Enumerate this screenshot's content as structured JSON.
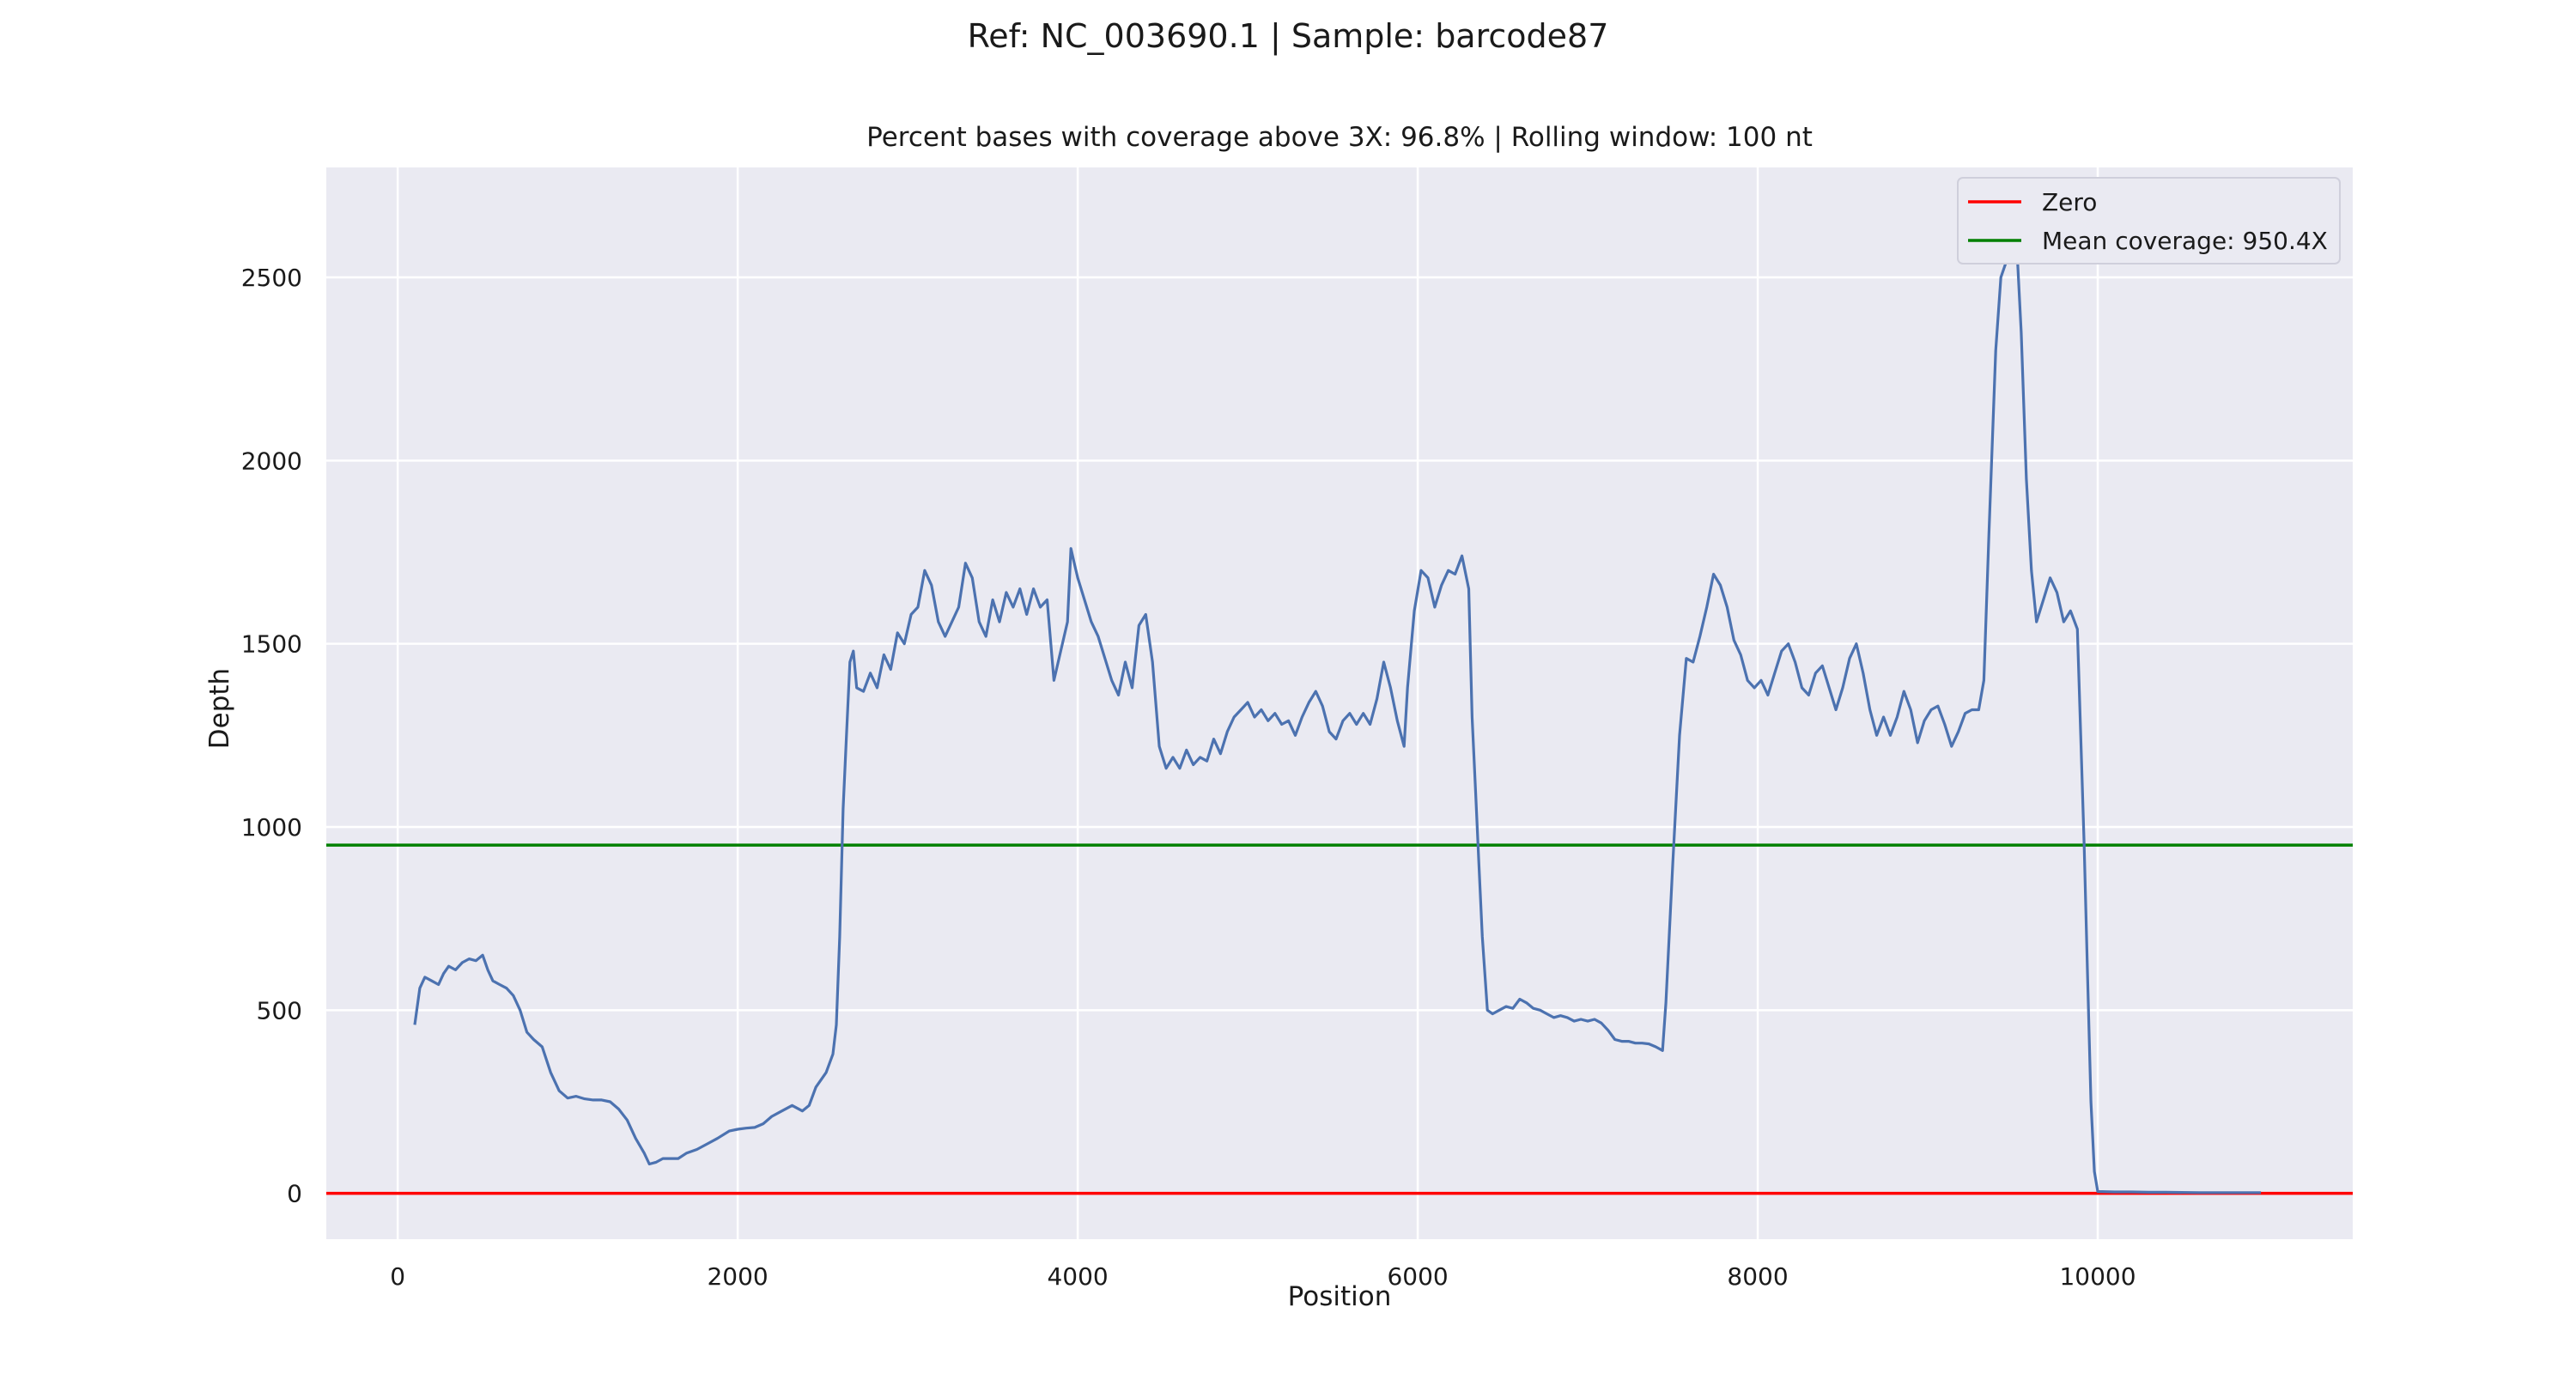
{
  "figure": {
    "suptitle": "Ref: NC_003690.1 | Sample: barcode87",
    "axes_title": "Percent bases with coverage above 3X:  96.8% | Rolling window: 100 nt"
  },
  "colors": {
    "plot_bg": "#eaeaf2",
    "grid": "#ffffff",
    "depth_line": "#4c72b0",
    "zero_line": "#ff0000",
    "mean_line": "#008000"
  },
  "chart_data": {
    "type": "line",
    "title": "Percent bases with coverage above 3X:  96.8% | Rolling window: 100 nt",
    "xlabel": "Position",
    "ylabel": "Depth",
    "xlim": [
      -420,
      11500
    ],
    "ylim": [
      -125,
      2800
    ],
    "xticks": [
      0,
      2000,
      4000,
      6000,
      8000,
      10000
    ],
    "yticks": [
      0,
      500,
      1000,
      1500,
      2000,
      2500
    ],
    "grid": true,
    "legend_position": "top-right",
    "legend": [
      {
        "label": "Zero",
        "color": "#ff0000"
      },
      {
        "label": "Mean coverage:  950.4X",
        "color": "#008000"
      }
    ],
    "reference_lines": [
      {
        "name": "Zero",
        "y": 0,
        "color": "#ff0000"
      },
      {
        "name": "Mean coverage:  950.4X",
        "y": 950.4,
        "color": "#008000"
      }
    ],
    "series": [
      {
        "color": "#4c72b0",
        "points": [
          [
            100,
            460
          ],
          [
            130,
            560
          ],
          [
            160,
            590
          ],
          [
            200,
            580
          ],
          [
            240,
            570
          ],
          [
            270,
            600
          ],
          [
            300,
            620
          ],
          [
            340,
            610
          ],
          [
            380,
            630
          ],
          [
            420,
            640
          ],
          [
            460,
            635
          ],
          [
            500,
            650
          ],
          [
            530,
            610
          ],
          [
            560,
            580
          ],
          [
            600,
            570
          ],
          [
            640,
            560
          ],
          [
            680,
            540
          ],
          [
            720,
            500
          ],
          [
            760,
            440
          ],
          [
            800,
            420
          ],
          [
            850,
            400
          ],
          [
            900,
            330
          ],
          [
            950,
            280
          ],
          [
            1000,
            260
          ],
          [
            1050,
            265
          ],
          [
            1100,
            258
          ],
          [
            1150,
            255
          ],
          [
            1200,
            255
          ],
          [
            1250,
            250
          ],
          [
            1300,
            230
          ],
          [
            1350,
            200
          ],
          [
            1400,
            150
          ],
          [
            1450,
            110
          ],
          [
            1480,
            80
          ],
          [
            1520,
            85
          ],
          [
            1560,
            95
          ],
          [
            1600,
            95
          ],
          [
            1650,
            95
          ],
          [
            1700,
            110
          ],
          [
            1760,
            120
          ],
          [
            1820,
            135
          ],
          [
            1880,
            150
          ],
          [
            1950,
            170
          ],
          [
            2000,
            175
          ],
          [
            2050,
            178
          ],
          [
            2100,
            180
          ],
          [
            2150,
            190
          ],
          [
            2200,
            210
          ],
          [
            2260,
            225
          ],
          [
            2320,
            240
          ],
          [
            2380,
            225
          ],
          [
            2420,
            240
          ],
          [
            2460,
            290
          ],
          [
            2520,
            330
          ],
          [
            2560,
            380
          ],
          [
            2580,
            460
          ],
          [
            2600,
            700
          ],
          [
            2620,
            1050
          ],
          [
            2640,
            1250
          ],
          [
            2660,
            1450
          ],
          [
            2680,
            1480
          ],
          [
            2700,
            1380
          ],
          [
            2740,
            1370
          ],
          [
            2780,
            1420
          ],
          [
            2820,
            1380
          ],
          [
            2860,
            1470
          ],
          [
            2900,
            1430
          ],
          [
            2940,
            1530
          ],
          [
            2980,
            1500
          ],
          [
            3020,
            1580
          ],
          [
            3060,
            1600
          ],
          [
            3100,
            1700
          ],
          [
            3140,
            1660
          ],
          [
            3180,
            1560
          ],
          [
            3220,
            1520
          ],
          [
            3260,
            1560
          ],
          [
            3300,
            1600
          ],
          [
            3340,
            1720
          ],
          [
            3380,
            1680
          ],
          [
            3420,
            1560
          ],
          [
            3460,
            1520
          ],
          [
            3500,
            1620
          ],
          [
            3540,
            1560
          ],
          [
            3580,
            1640
          ],
          [
            3620,
            1600
          ],
          [
            3660,
            1650
          ],
          [
            3700,
            1580
          ],
          [
            3740,
            1650
          ],
          [
            3780,
            1600
          ],
          [
            3820,
            1620
          ],
          [
            3860,
            1400
          ],
          [
            3900,
            1480
          ],
          [
            3940,
            1560
          ],
          [
            3960,
            1760
          ],
          [
            3980,
            1720
          ],
          [
            4000,
            1680
          ],
          [
            4040,
            1620
          ],
          [
            4080,
            1560
          ],
          [
            4120,
            1520
          ],
          [
            4160,
            1460
          ],
          [
            4200,
            1400
          ],
          [
            4240,
            1360
          ],
          [
            4280,
            1450
          ],
          [
            4320,
            1380
          ],
          [
            4360,
            1550
          ],
          [
            4400,
            1580
          ],
          [
            4440,
            1450
          ],
          [
            4480,
            1220
          ],
          [
            4520,
            1160
          ],
          [
            4560,
            1190
          ],
          [
            4600,
            1160
          ],
          [
            4640,
            1210
          ],
          [
            4680,
            1170
          ],
          [
            4720,
            1190
          ],
          [
            4760,
            1180
          ],
          [
            4800,
            1240
          ],
          [
            4840,
            1200
          ],
          [
            4880,
            1260
          ],
          [
            4920,
            1300
          ],
          [
            4960,
            1320
          ],
          [
            5000,
            1340
          ],
          [
            5040,
            1300
          ],
          [
            5080,
            1320
          ],
          [
            5120,
            1290
          ],
          [
            5160,
            1310
          ],
          [
            5200,
            1280
          ],
          [
            5240,
            1290
          ],
          [
            5280,
            1250
          ],
          [
            5320,
            1300
          ],
          [
            5360,
            1340
          ],
          [
            5400,
            1370
          ],
          [
            5440,
            1330
          ],
          [
            5480,
            1260
          ],
          [
            5520,
            1240
          ],
          [
            5560,
            1290
          ],
          [
            5600,
            1310
          ],
          [
            5640,
            1280
          ],
          [
            5680,
            1310
          ],
          [
            5720,
            1280
          ],
          [
            5760,
            1350
          ],
          [
            5800,
            1450
          ],
          [
            5840,
            1380
          ],
          [
            5880,
            1290
          ],
          [
            5920,
            1220
          ],
          [
            5940,
            1380
          ],
          [
            5980,
            1590
          ],
          [
            6020,
            1700
          ],
          [
            6060,
            1680
          ],
          [
            6100,
            1600
          ],
          [
            6140,
            1660
          ],
          [
            6180,
            1700
          ],
          [
            6220,
            1690
          ],
          [
            6260,
            1740
          ],
          [
            6300,
            1650
          ],
          [
            6320,
            1300
          ],
          [
            6340,
            1100
          ],
          [
            6360,
            900
          ],
          [
            6380,
            700
          ],
          [
            6410,
            500
          ],
          [
            6440,
            490
          ],
          [
            6480,
            500
          ],
          [
            6520,
            510
          ],
          [
            6560,
            505
          ],
          [
            6600,
            530
          ],
          [
            6640,
            520
          ],
          [
            6680,
            505
          ],
          [
            6720,
            500
          ],
          [
            6760,
            490
          ],
          [
            6800,
            480
          ],
          [
            6840,
            485
          ],
          [
            6880,
            480
          ],
          [
            6920,
            470
          ],
          [
            6960,
            475
          ],
          [
            7000,
            470
          ],
          [
            7040,
            475
          ],
          [
            7080,
            465
          ],
          [
            7120,
            445
          ],
          [
            7160,
            420
          ],
          [
            7200,
            415
          ],
          [
            7240,
            415
          ],
          [
            7280,
            410
          ],
          [
            7320,
            410
          ],
          [
            7360,
            408
          ],
          [
            7400,
            400
          ],
          [
            7440,
            390
          ],
          [
            7460,
            520
          ],
          [
            7500,
            900
          ],
          [
            7540,
            1250
          ],
          [
            7580,
            1460
          ],
          [
            7620,
            1450
          ],
          [
            7660,
            1520
          ],
          [
            7700,
            1600
          ],
          [
            7740,
            1690
          ],
          [
            7780,
            1660
          ],
          [
            7820,
            1600
          ],
          [
            7860,
            1510
          ],
          [
            7900,
            1470
          ],
          [
            7940,
            1400
          ],
          [
            7980,
            1380
          ],
          [
            8020,
            1400
          ],
          [
            8060,
            1360
          ],
          [
            8100,
            1420
          ],
          [
            8140,
            1480
          ],
          [
            8180,
            1500
          ],
          [
            8220,
            1450
          ],
          [
            8260,
            1380
          ],
          [
            8300,
            1360
          ],
          [
            8340,
            1420
          ],
          [
            8380,
            1440
          ],
          [
            8420,
            1380
          ],
          [
            8460,
            1320
          ],
          [
            8500,
            1380
          ],
          [
            8540,
            1460
          ],
          [
            8580,
            1500
          ],
          [
            8620,
            1420
          ],
          [
            8660,
            1320
          ],
          [
            8700,
            1250
          ],
          [
            8740,
            1300
          ],
          [
            8780,
            1250
          ],
          [
            8820,
            1300
          ],
          [
            8860,
            1370
          ],
          [
            8900,
            1320
          ],
          [
            8940,
            1230
          ],
          [
            8980,
            1290
          ],
          [
            9020,
            1320
          ],
          [
            9060,
            1330
          ],
          [
            9100,
            1280
          ],
          [
            9140,
            1220
          ],
          [
            9180,
            1260
          ],
          [
            9220,
            1310
          ],
          [
            9260,
            1320
          ],
          [
            9300,
            1320
          ],
          [
            9330,
            1400
          ],
          [
            9360,
            1800
          ],
          [
            9400,
            2300
          ],
          [
            9430,
            2500
          ],
          [
            9460,
            2540
          ],
          [
            9490,
            2650
          ],
          [
            9520,
            2620
          ],
          [
            9550,
            2350
          ],
          [
            9580,
            1950
          ],
          [
            9610,
            1700
          ],
          [
            9640,
            1560
          ],
          [
            9680,
            1620
          ],
          [
            9720,
            1680
          ],
          [
            9760,
            1640
          ],
          [
            9800,
            1560
          ],
          [
            9840,
            1590
          ],
          [
            9880,
            1540
          ],
          [
            9900,
            1250
          ],
          [
            9920,
            950
          ],
          [
            9940,
            600
          ],
          [
            9960,
            250
          ],
          [
            9980,
            60
          ],
          [
            10000,
            5
          ],
          [
            10100,
            4
          ],
          [
            10200,
            4
          ],
          [
            10300,
            3
          ],
          [
            10400,
            3
          ],
          [
            10600,
            2
          ],
          [
            10800,
            2
          ],
          [
            10960,
            2
          ]
        ]
      }
    ]
  }
}
